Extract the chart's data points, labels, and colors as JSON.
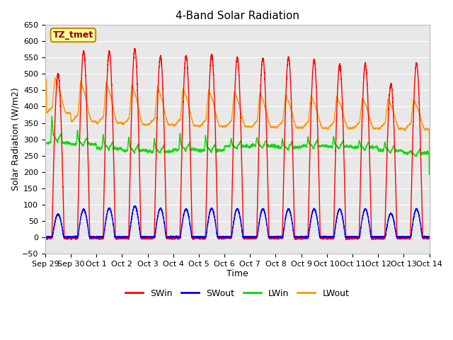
{
  "title": "4-Band Solar Radiation",
  "xlabel": "Time",
  "ylabel": "Solar Radiation (W/m2)",
  "ylim": [
    -50,
    650
  ],
  "x_labels": [
    "Sep 29",
    "Sep 30",
    "Oct 1",
    "Oct 2",
    "Oct 3",
    "Oct 4",
    "Oct 5",
    "Oct 6",
    "Oct 7",
    "Oct 8",
    "Oct 9",
    "Oct 10",
    "Oct 11",
    "Oct 12",
    "Oct 13",
    "Oct 14"
  ],
  "annotation_text": "TZ_tmet",
  "annotation_bg": "#ffff99",
  "annotation_border": "#cc8800",
  "annotation_text_color": "#8B0000",
  "colors": {
    "SWin": "#ff0000",
    "SWout": "#0000ff",
    "LWin": "#00dd00",
    "LWout": "#ff9900"
  },
  "n_days": 15,
  "pts_per_day": 480,
  "SWin_peaks": [
    500,
    570,
    568,
    575,
    553,
    555,
    558,
    550,
    548,
    550,
    543,
    528,
    530,
    468,
    532
  ],
  "SWout_peaks": [
    70,
    85,
    88,
    95,
    88,
    86,
    88,
    86,
    86,
    86,
    86,
    86,
    86,
    72,
    86
  ],
  "LWout_day_peaks": [
    490,
    480,
    475,
    468,
    462,
    457,
    452,
    447,
    443,
    438,
    435,
    432,
    428,
    425,
    422
  ],
  "LWout_night_vals": [
    380,
    355,
    350,
    345,
    345,
    342,
    340,
    338,
    337,
    336,
    335,
    334,
    333,
    332,
    330
  ],
  "LWin_base": [
    290,
    285,
    272,
    265,
    262,
    268,
    265,
    278,
    280,
    275,
    280,
    278,
    275,
    265,
    258
  ],
  "LWin_spike": [
    380,
    330,
    320,
    310,
    305,
    320,
    315,
    305,
    310,
    305,
    310,
    310,
    300,
    295,
    265
  ]
}
